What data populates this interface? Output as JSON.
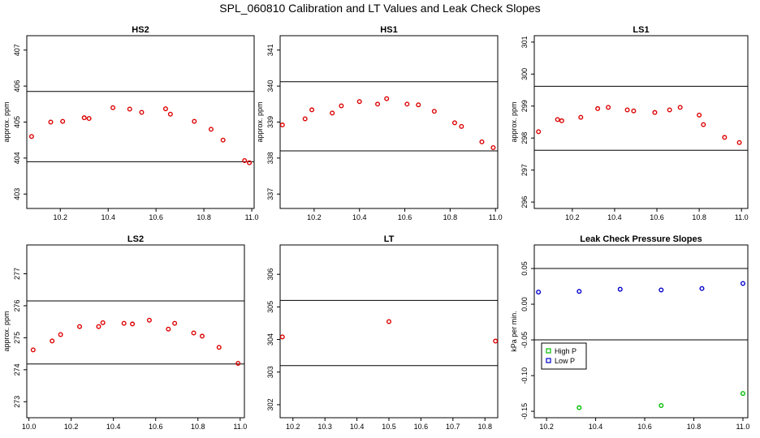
{
  "suptitle": "SPL_060810  Calibration and LT Values and Leak Check Slopes",
  "colors": {
    "point": "#dd0000",
    "high": "#00bb00",
    "low": "#0000cc",
    "axis": "#000000"
  },
  "chart_data": [
    {
      "type": "scatter",
      "title": "HS2",
      "ylabel": "approx. ppm",
      "xlim": [
        10.06,
        11.01
      ],
      "ylim": [
        402.6,
        407.4
      ],
      "xticks": [
        10.2,
        10.4,
        10.6,
        10.8,
        11.0
      ],
      "xtick_labels": [
        "10.2",
        "10.4",
        "10.6",
        "10.8",
        "11.0"
      ],
      "yticks": [
        403,
        404,
        405,
        406,
        407
      ],
      "ytick_labels": [
        "403",
        "404",
        "405",
        "406",
        "407"
      ],
      "hlines": [
        405.85,
        403.9
      ],
      "series": [
        {
          "x": [
            10.08,
            10.16,
            10.21,
            10.3,
            10.32,
            10.42,
            10.49,
            10.54,
            10.64,
            10.66,
            10.76,
            10.83,
            10.88,
            10.97,
            10.99
          ],
          "y": [
            404.6,
            405.0,
            405.02,
            405.12,
            405.1,
            405.4,
            405.36,
            405.27,
            405.37,
            405.22,
            405.02,
            404.8,
            404.5,
            403.93,
            403.87
          ]
        }
      ]
    },
    {
      "type": "scatter",
      "title": "HS1",
      "ylabel": "approx. ppm",
      "xlim": [
        10.05,
        11.01
      ],
      "ylim": [
        336.6,
        341.4
      ],
      "xticks": [
        10.2,
        10.4,
        10.6,
        10.8,
        11.0
      ],
      "xtick_labels": [
        "10.2",
        "10.4",
        "10.6",
        "10.8",
        "11.0"
      ],
      "yticks": [
        337,
        338,
        339,
        340,
        341
      ],
      "ytick_labels": [
        "337",
        "338",
        "339",
        "340",
        "341"
      ],
      "hlines": [
        340.12,
        338.2
      ],
      "series": [
        {
          "x": [
            10.06,
            10.16,
            10.19,
            10.28,
            10.32,
            10.4,
            10.48,
            10.52,
            10.61,
            10.66,
            10.73,
            10.82,
            10.85,
            10.94,
            10.99
          ],
          "y": [
            338.92,
            339.09,
            339.34,
            339.25,
            339.45,
            339.57,
            339.5,
            339.65,
            339.5,
            339.48,
            339.3,
            338.98,
            338.88,
            338.45,
            338.29
          ]
        }
      ]
    },
    {
      "type": "scatter",
      "title": "LS1",
      "ylabel": "approx. ppm",
      "xlim": [
        10.02,
        11.03
      ],
      "ylim": [
        295.8,
        301.2
      ],
      "xticks": [
        10.2,
        10.4,
        10.6,
        10.8,
        11.0
      ],
      "xtick_labels": [
        "10.2",
        "10.4",
        "10.6",
        "10.8",
        "11.0"
      ],
      "yticks": [
        296,
        297,
        298,
        299,
        300,
        301
      ],
      "ytick_labels": [
        "296",
        "297",
        "298",
        "299",
        "300",
        "301"
      ],
      "hlines": [
        299.62,
        297.62
      ],
      "series": [
        {
          "x": [
            10.04,
            10.13,
            10.15,
            10.24,
            10.32,
            10.37,
            10.46,
            10.49,
            10.59,
            10.66,
            10.71,
            10.8,
            10.82,
            10.92,
            10.99
          ],
          "y": [
            298.2,
            298.58,
            298.54,
            298.65,
            298.92,
            298.96,
            298.88,
            298.85,
            298.8,
            298.88,
            298.96,
            298.72,
            298.42,
            298.02,
            297.86
          ]
        }
      ]
    },
    {
      "type": "scatter",
      "title": "LS2",
      "ylabel": "approx. ppm",
      "xlim": [
        9.99,
        11.02
      ],
      "ylim": [
        272.5,
        277.9
      ],
      "xticks": [
        10.0,
        10.2,
        10.4,
        10.6,
        10.8,
        11.0
      ],
      "xtick_labels": [
        "10.0",
        "10.2",
        "10.4",
        "10.6",
        "10.8",
        "11.0"
      ],
      "yticks": [
        273,
        274,
        275,
        276,
        277
      ],
      "ytick_labels": [
        "273",
        "274",
        "275",
        "276",
        "277"
      ],
      "hlines": [
        276.15,
        274.18
      ],
      "series": [
        {
          "x": [
            10.02,
            10.11,
            10.15,
            10.24,
            10.33,
            10.35,
            10.45,
            10.49,
            10.57,
            10.66,
            10.69,
            10.78,
            10.82,
            10.9,
            10.99
          ],
          "y": [
            274.62,
            274.9,
            275.1,
            275.35,
            275.35,
            275.47,
            275.45,
            275.43,
            275.55,
            275.27,
            275.45,
            275.15,
            275.05,
            274.7,
            274.2
          ]
        }
      ]
    },
    {
      "type": "scatter",
      "title": "LT",
      "ylabel": "",
      "xlim": [
        10.16,
        10.84
      ],
      "ylim": [
        301.6,
        306.9
      ],
      "xticks": [
        10.2,
        10.3,
        10.4,
        10.5,
        10.6,
        10.7,
        10.8
      ],
      "xtick_labels": [
        "10.2",
        "10.3",
        "10.4",
        "10.5",
        "10.6",
        "10.7",
        "10.8"
      ],
      "yticks": [
        302,
        303,
        304,
        305,
        306
      ],
      "ytick_labels": [
        "302",
        "303",
        "304",
        "305",
        "306"
      ],
      "hlines": [
        305.2,
        303.2
      ],
      "series": [
        {
          "x": [
            10.167,
            10.5,
            10.833
          ],
          "y": [
            304.08,
            304.55,
            303.95
          ]
        }
      ]
    },
    {
      "type": "scatter",
      "title": "Leak Check Pressure Slopes",
      "ylabel": "kPa per min.",
      "xlim": [
        10.15,
        11.02
      ],
      "ylim": [
        -0.159,
        0.083
      ],
      "xticks": [
        10.2,
        10.4,
        10.6,
        10.8,
        11.0
      ],
      "xtick_labels": [
        "10.2",
        "10.4",
        "10.6",
        "10.8",
        "11.0"
      ],
      "yticks": [
        -0.15,
        -0.1,
        -0.05,
        0.0,
        0.05
      ],
      "ytick_labels": [
        "-0.15",
        "-0.10",
        "-0.05",
        "0.00",
        "0.05"
      ],
      "hlines": [
        0.05,
        -0.05
      ],
      "legend": {
        "position": "left",
        "entries": [
          {
            "label": "High P",
            "color": "#00bb00"
          },
          {
            "label": "Low P",
            "color": "#0000cc"
          }
        ]
      },
      "series": [
        {
          "name": "High P",
          "color": "#00bb00",
          "x": [
            10.333,
            10.667,
            11.0
          ],
          "y": [
            -0.145,
            -0.142,
            -0.125
          ]
        },
        {
          "name": "Low P",
          "color": "#0000cc",
          "x": [
            10.167,
            10.333,
            10.5,
            10.667,
            10.833,
            11.0
          ],
          "y": [
            0.017,
            0.018,
            0.021,
            0.02,
            0.022,
            0.029
          ]
        }
      ]
    }
  ]
}
